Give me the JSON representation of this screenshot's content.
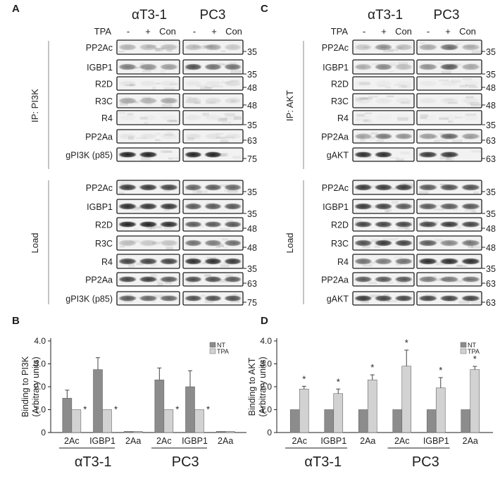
{
  "figure": {
    "panels": {
      "a": "A",
      "b": "B",
      "c": "C",
      "d": "D"
    },
    "cell_lines": [
      "αT3-1",
      "PC3"
    ],
    "treatment_label": "TPA",
    "lane_labels": [
      "-",
      "+",
      "Con"
    ]
  },
  "blot_a": {
    "ip_label": "IP: PI3K",
    "load_label": "Load",
    "ip_rows": [
      {
        "label": "PP2Ac",
        "mw": "35"
      },
      {
        "label": "IGBP1",
        "mw": "35"
      },
      {
        "label": "R2D",
        "mw": "48"
      },
      {
        "label": "R3C",
        "mw": "48"
      },
      {
        "label": "R4",
        "mw": "35"
      },
      {
        "label": "PP2Aa",
        "mw": "63"
      },
      {
        "label": "gPI3K (p85)",
        "mw": "75"
      }
    ],
    "load_rows": [
      {
        "label": "PP2Ac",
        "mw": "35"
      },
      {
        "label": "IGBP1",
        "mw": "35"
      },
      {
        "label": "R2D",
        "mw": "48"
      },
      {
        "label": "R3C",
        "mw": "48"
      },
      {
        "label": "R4",
        "mw": "35"
      },
      {
        "label": "PP2Aa",
        "mw": "63"
      },
      {
        "label": "gPI3K (p85)",
        "mw": "75"
      }
    ]
  },
  "blot_c": {
    "ip_label": "IP: AKT",
    "load_label": "Load",
    "ip_rows": [
      {
        "label": "PP2Ac",
        "mw": "35"
      },
      {
        "label": "IGBP1",
        "mw": "35"
      },
      {
        "label": "R2D",
        "mw": "48"
      },
      {
        "label": "R3C",
        "mw": "48"
      },
      {
        "label": "R4",
        "mw": "35"
      },
      {
        "label": "PP2Aa",
        "mw": "63"
      },
      {
        "label": "gAKT",
        "mw": "63"
      }
    ],
    "load_rows": [
      {
        "label": "PP2Ac",
        "mw": "35"
      },
      {
        "label": "IGBP1",
        "mw": "35"
      },
      {
        "label": "R2D",
        "mw": "48"
      },
      {
        "label": "R3C",
        "mw": "48"
      },
      {
        "label": "R4",
        "mw": "35"
      },
      {
        "label": "PP2Aa",
        "mw": "63"
      },
      {
        "label": "gAKT",
        "mw": "63"
      }
    ]
  },
  "chart_data": [
    {
      "type": "bar",
      "panel": "B",
      "ylabel": "Binding to PI3K\n(Arbitrary units)",
      "ylim": [
        0,
        4
      ],
      "yticks": [
        "0",
        "1.0",
        "2.0",
        "3.0",
        "4.0"
      ],
      "categories": [
        "2Ac",
        "IGBP1",
        "2Aa",
        "2Ac",
        "IGBP1",
        "2Aa"
      ],
      "groups": [
        "αT3-1",
        "PC3"
      ],
      "legend": [
        "NT",
        "TPA"
      ],
      "series": [
        {
          "name": "NT",
          "color": "#8c8c8c",
          "values": [
            1.5,
            2.75,
            0.05,
            2.3,
            2.0,
            0.05
          ],
          "errors": [
            0.35,
            0.52,
            0,
            0.52,
            0.7,
            0
          ]
        },
        {
          "name": "TPA",
          "color": "#d2d2d2",
          "values": [
            1.0,
            1.0,
            0.05,
            1.0,
            1.0,
            0.05
          ],
          "errors": [
            0,
            0,
            0,
            0,
            0,
            0
          ]
        }
      ],
      "significance_marker": "*",
      "significant": [
        true,
        true,
        false,
        true,
        true,
        false
      ]
    },
    {
      "type": "bar",
      "panel": "D",
      "ylabel": "Binding to AKT\n(Arbitrary units)",
      "ylim": [
        0,
        4
      ],
      "yticks": [
        "0",
        "1.0",
        "2.0",
        "3.0",
        "4.0"
      ],
      "categories": [
        "2Ac",
        "IGBP1",
        "2Aa",
        "2Ac",
        "IGBP1",
        "2Aa"
      ],
      "groups": [
        "αT3-1",
        "PC3"
      ],
      "legend": [
        "NT",
        "TPA"
      ],
      "series": [
        {
          "name": "NT",
          "color": "#8c8c8c",
          "values": [
            1.0,
            1.0,
            1.0,
            1.0,
            1.0,
            1.0
          ],
          "errors": [
            0,
            0,
            0,
            0,
            0,
            0
          ]
        },
        {
          "name": "TPA",
          "color": "#d2d2d2",
          "values": [
            1.9,
            1.7,
            2.3,
            2.9,
            1.95,
            2.75
          ],
          "errors": [
            0.12,
            0.2,
            0.22,
            0.7,
            0.45,
            0.14
          ]
        }
      ],
      "significance_marker": "*",
      "significant": [
        true,
        true,
        true,
        true,
        true,
        true
      ]
    }
  ]
}
